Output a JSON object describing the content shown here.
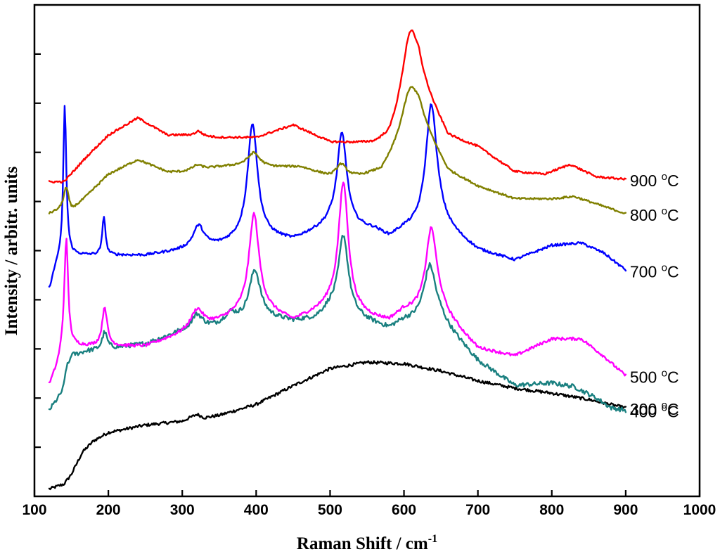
{
  "chart_data": {
    "type": "line",
    "title": "",
    "xlabel_main": "Raman Shift / cm",
    "xlabel_sup": "-1",
    "ylabel": "Intensity / arbitr. units",
    "xlim": [
      100,
      1000
    ],
    "ylim": [
      0,
      10
    ],
    "x_ticks": [
      100,
      200,
      300,
      400,
      500,
      600,
      700,
      800,
      900,
      1000
    ],
    "y_ticks": [
      1,
      2,
      3,
      4,
      5,
      6,
      7,
      8,
      9
    ],
    "series": [
      {
        "name": "300 °C",
        "label_main": "300 ",
        "label_sup": "o",
        "label_unit": "C",
        "color": "#000000",
        "offset": 0.15,
        "baseline": [
          [
            120,
            0
          ],
          [
            140,
            0.1
          ],
          [
            150,
            0.3
          ],
          [
            165,
            0.75
          ],
          [
            180,
            0.98
          ],
          [
            200,
            1.15
          ],
          [
            250,
            1.3
          ],
          [
            300,
            1.38
          ],
          [
            320,
            1.52
          ],
          [
            330,
            1.45
          ],
          [
            350,
            1.5
          ],
          [
            400,
            1.72
          ],
          [
            450,
            2.1
          ],
          [
            500,
            2.45
          ],
          [
            550,
            2.58
          ],
          [
            600,
            2.55
          ],
          [
            650,
            2.4
          ],
          [
            700,
            2.2
          ],
          [
            750,
            2.05
          ],
          [
            800,
            1.95
          ],
          [
            850,
            1.82
          ],
          [
            900,
            1.65
          ]
        ],
        "peaks": [],
        "noise": 0.03
      },
      {
        "name": "400 °C",
        "label_main": "400 ",
        "label_sup": "o",
        "label_unit": "C",
        "color": "#1a8080",
        "offset": 1.75,
        "baseline": [
          [
            120,
            0
          ],
          [
            140,
            0.4
          ],
          [
            150,
            1.1
          ],
          [
            170,
            1.2
          ],
          [
            200,
            1.25
          ],
          [
            250,
            1.35
          ],
          [
            300,
            1.6
          ],
          [
            350,
            1.7
          ],
          [
            380,
            1.8
          ],
          [
            400,
            1.9
          ],
          [
            450,
            1.8
          ],
          [
            480,
            1.85
          ],
          [
            500,
            2.05
          ],
          [
            560,
            1.75
          ],
          [
            580,
            1.65
          ],
          [
            600,
            1.8
          ],
          [
            650,
            1.8
          ],
          [
            700,
            1.0
          ],
          [
            750,
            0.5
          ],
          [
            800,
            0.55
          ],
          [
            830,
            0.48
          ],
          [
            860,
            0.25
          ],
          [
            880,
            0.05
          ],
          [
            900,
            0
          ]
        ],
        "peaks": [
          [
            143,
            0.25,
            3
          ],
          [
            195,
            0.35,
            4
          ],
          [
            320,
            0.3,
            9
          ],
          [
            398,
            0.95,
            9
          ],
          [
            518,
            1.6,
            8
          ],
          [
            635,
            1.15,
            10
          ],
          [
            365,
            0.2,
            10
          ]
        ],
        "noise": 0.045
      },
      {
        "name": "500 °C",
        "label_main": "500 ",
        "label_sup": "o",
        "label_unit": "C",
        "color": "#ff00ff",
        "offset": 2.25,
        "baseline": [
          [
            120,
            0
          ],
          [
            130,
            0.35
          ],
          [
            140,
            0.8
          ],
          [
            170,
            0.8
          ],
          [
            200,
            0.8
          ],
          [
            250,
            0.8
          ],
          [
            300,
            1.05
          ],
          [
            350,
            1.3
          ],
          [
            400,
            1.6
          ],
          [
            450,
            1.3
          ],
          [
            500,
            1.6
          ],
          [
            560,
            1.35
          ],
          [
            580,
            1.3
          ],
          [
            600,
            1.5
          ],
          [
            650,
            1.5
          ],
          [
            700,
            0.75
          ],
          [
            750,
            0.6
          ],
          [
            800,
            0.95
          ],
          [
            840,
            0.95
          ],
          [
            870,
            0.6
          ],
          [
            900,
            0.2
          ]
        ],
        "peaks": [
          [
            143,
            2.2,
            3
          ],
          [
            195,
            0.8,
            4
          ],
          [
            320,
            0.4,
            10
          ],
          [
            397,
            1.9,
            8
          ],
          [
            518,
            2.6,
            8
          ],
          [
            637,
            1.7,
            9
          ]
        ],
        "noise": 0.03
      },
      {
        "name": "700 °C",
        "label_main": "700 ",
        "label_sup": "o",
        "label_unit": "C",
        "color": "#0000ff",
        "offset": 4.2,
        "baseline": [
          [
            120,
            0
          ],
          [
            130,
            0.5
          ],
          [
            145,
            0.7
          ],
          [
            200,
            0.7
          ],
          [
            250,
            0.7
          ],
          [
            300,
            0.8
          ],
          [
            350,
            0.9
          ],
          [
            400,
            1.1
          ],
          [
            450,
            1.0
          ],
          [
            500,
            1.3
          ],
          [
            560,
            1.2
          ],
          [
            580,
            1.05
          ],
          [
            600,
            1.2
          ],
          [
            650,
            1.3
          ],
          [
            700,
            0.8
          ],
          [
            750,
            0.6
          ],
          [
            800,
            0.9
          ],
          [
            840,
            0.95
          ],
          [
            870,
            0.75
          ],
          [
            900,
            0.4
          ]
        ],
        "peaks": [
          [
            141,
            3.1,
            2.5
          ],
          [
            194,
            0.8,
            2.5
          ],
          [
            322,
            0.45,
            9
          ],
          [
            395,
            2.3,
            8
          ],
          [
            516,
            1.9,
            8
          ],
          [
            637,
            2.5,
            9
          ]
        ],
        "noise": 0.025
      },
      {
        "name": "800 °C",
        "label_main": "800 ",
        "label_sup": "o",
        "label_unit": "C",
        "color": "#808000",
        "offset": 5.75,
        "baseline": [
          [
            120,
            0
          ],
          [
            140,
            0.1
          ],
          [
            150,
            0.05
          ],
          [
            180,
            0.5
          ],
          [
            200,
            0.8
          ],
          [
            240,
            1.1
          ],
          [
            280,
            0.85
          ],
          [
            300,
            0.85
          ],
          [
            350,
            0.95
          ],
          [
            390,
            1.0
          ],
          [
            420,
            0.95
          ],
          [
            460,
            0.95
          ],
          [
            500,
            0.75
          ],
          [
            540,
            0.75
          ],
          [
            570,
            0.85
          ],
          [
            620,
            1.9
          ],
          [
            660,
            0.85
          ],
          [
            700,
            0.55
          ],
          [
            750,
            0.3
          ],
          [
            800,
            0.3
          ],
          [
            830,
            0.35
          ],
          [
            870,
            0.15
          ],
          [
            900,
            0
          ]
        ],
        "peaks": [
          [
            143,
            0.45,
            4
          ],
          [
            320,
            0.1,
            8
          ],
          [
            397,
            0.25,
            9
          ],
          [
            515,
            0.25,
            8
          ],
          [
            608,
            0.9,
            14
          ]
        ],
        "noise": 0.02
      },
      {
        "name": "900 °C",
        "label_main": "900 ",
        "label_sup": "o",
        "label_unit": "C",
        "color": "#ff0000",
        "offset": 6.4,
        "baseline": [
          [
            120,
            0
          ],
          [
            140,
            0
          ],
          [
            170,
            0.5
          ],
          [
            200,
            0.95
          ],
          [
            240,
            1.3
          ],
          [
            280,
            0.95
          ],
          [
            300,
            0.95
          ],
          [
            350,
            0.9
          ],
          [
            400,
            0.9
          ],
          [
            450,
            1.15
          ],
          [
            500,
            0.8
          ],
          [
            560,
            0.75
          ],
          [
            580,
            0.85
          ],
          [
            620,
            2.0
          ],
          [
            660,
            0.9
          ],
          [
            700,
            0.7
          ],
          [
            750,
            0.2
          ],
          [
            790,
            0.15
          ],
          [
            825,
            0.35
          ],
          [
            860,
            0.1
          ],
          [
            900,
            0.05
          ]
        ],
        "peaks": [
          [
            322,
            0.1,
            6
          ],
          [
            608,
            1.4,
            13
          ]
        ],
        "noise": 0.02
      }
    ]
  }
}
